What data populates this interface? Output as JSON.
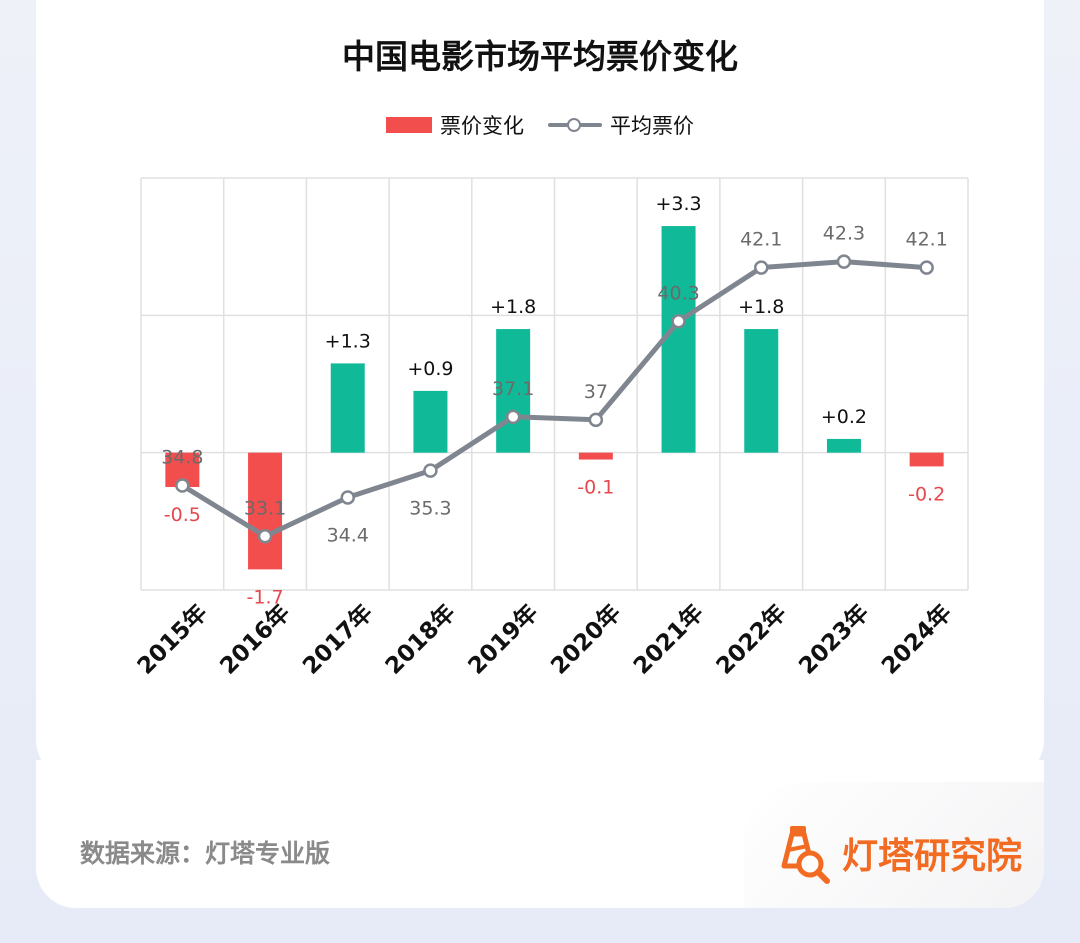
{
  "chart_data": {
    "type": "bar+line",
    "title": "中国电影市场平均票价变化",
    "categories": [
      "2015年",
      "2016年",
      "2017年",
      "2018年",
      "2019年",
      "2020年",
      "2021年",
      "2022年",
      "2023年",
      "2024年"
    ],
    "series": [
      {
        "name": "票价变化",
        "type": "bar",
        "values": [
          -0.5,
          -1.7,
          1.3,
          0.9,
          1.8,
          -0.1,
          3.3,
          1.8,
          0.2,
          -0.2
        ],
        "labels": [
          "-0.5",
          "-1.7",
          "+1.3",
          "+0.9",
          "+1.8",
          "-0.1",
          "+3.3",
          "+1.8",
          "+0.2",
          "-0.2"
        ],
        "positive_color": "#10b998",
        "negative_color": "#f24e4e"
      },
      {
        "name": "平均票价",
        "type": "line",
        "values": [
          34.8,
          33.1,
          34.4,
          35.3,
          37.1,
          37,
          40.3,
          42.1,
          42.3,
          42.1
        ],
        "labels": [
          "34.8",
          "33.1",
          "34.4",
          "35.3",
          "37.1",
          "37",
          "40.3",
          "42.1",
          "42.3",
          "42.1"
        ],
        "color": "#80868f"
      }
    ],
    "bar_axis_range": [
      -2,
      4
    ],
    "line_axis_range": [
      31.3,
      45.1
    ],
    "grid": true,
    "legend_position": "top-center"
  },
  "footer": {
    "source": "数据来源：灯塔专业版",
    "brand": "灯塔研究院",
    "brand_color": "#f26b22"
  }
}
